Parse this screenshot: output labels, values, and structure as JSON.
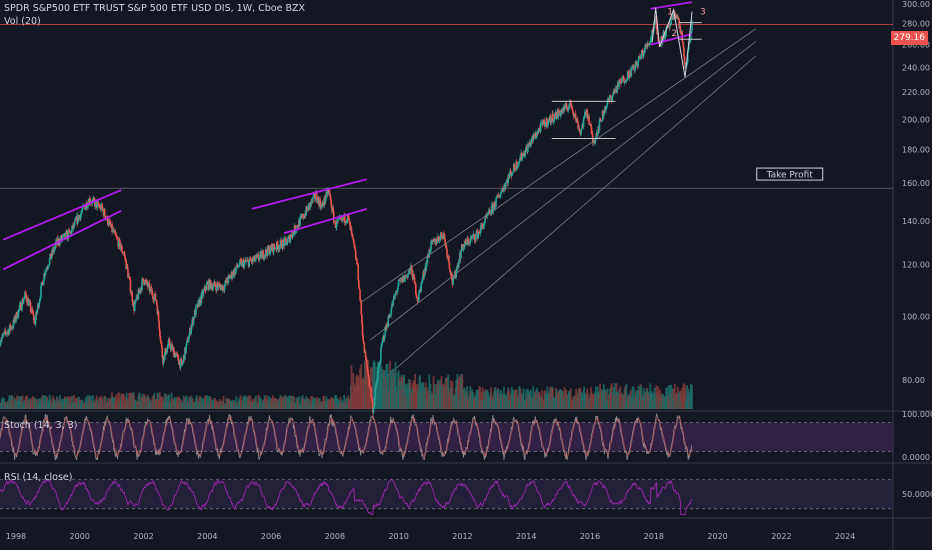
{
  "header": {
    "title": "SPDR S&P500 ETF TRUST S&P 500 ETF USD DIS, 1W, Cboe BZX",
    "vol_label": "Vol (20)",
    "stoch_label": "Stoch (14, 3, 3)",
    "rsi_label": "RSI (14, close)"
  },
  "price_tag": "279.16",
  "take_profit_label": "Take Profit",
  "wave_labels": [
    "1",
    "2",
    "3"
  ],
  "stoch_axis": [
    "100.0000",
    "0.0000"
  ],
  "rsi_axis": [
    "50.0000"
  ],
  "colors": {
    "background": "#131722",
    "up": "#26a69a",
    "down": "#ef5350",
    "trend_purple": "#b31cf0",
    "oscillator": "#9b27b0",
    "price_line": "#ef5350"
  },
  "chart_data": {
    "type": "candlestick",
    "symbol": "SPDR S&P500 ETF TRUST S&P 500 ETF USD DIS",
    "interval": "1W",
    "exchange": "Cboe BZX",
    "x_ticks": [
      "1998",
      "2000",
      "2002",
      "2004",
      "2006",
      "2008",
      "2010",
      "2012",
      "2014",
      "2016",
      "2018",
      "2020",
      "2022",
      "2024"
    ],
    "y_ticks": [
      80,
      100,
      120,
      140,
      160,
      180,
      200,
      220,
      240,
      260,
      280,
      300
    ],
    "ylim": [
      70,
      300
    ],
    "last_price": 279.16,
    "horizontal_level": 157,
    "price_series": [
      {
        "t": 1997.5,
        "v": 92
      },
      {
        "t": 1997.9,
        "v": 97
      },
      {
        "t": 1998.3,
        "v": 108
      },
      {
        "t": 1998.6,
        "v": 98
      },
      {
        "t": 1998.9,
        "v": 117
      },
      {
        "t": 1999.3,
        "v": 130
      },
      {
        "t": 1999.7,
        "v": 134
      },
      {
        "t": 2000.0,
        "v": 143
      },
      {
        "t": 2000.3,
        "v": 151
      },
      {
        "t": 2000.7,
        "v": 146
      },
      {
        "t": 2001.0,
        "v": 136
      },
      {
        "t": 2001.4,
        "v": 124
      },
      {
        "t": 2001.7,
        "v": 103
      },
      {
        "t": 2002.0,
        "v": 114
      },
      {
        "t": 2002.4,
        "v": 106
      },
      {
        "t": 2002.6,
        "v": 86
      },
      {
        "t": 2002.8,
        "v": 91
      },
      {
        "t": 2003.2,
        "v": 84
      },
      {
        "t": 2003.6,
        "v": 101
      },
      {
        "t": 2004.0,
        "v": 112
      },
      {
        "t": 2004.5,
        "v": 111
      },
      {
        "t": 2005.0,
        "v": 120
      },
      {
        "t": 2005.5,
        "v": 122
      },
      {
        "t": 2006.0,
        "v": 127
      },
      {
        "t": 2006.5,
        "v": 130
      },
      {
        "t": 2007.0,
        "v": 142
      },
      {
        "t": 2007.4,
        "v": 153
      },
      {
        "t": 2007.6,
        "v": 147
      },
      {
        "t": 2007.8,
        "v": 156
      },
      {
        "t": 2008.0,
        "v": 138
      },
      {
        "t": 2008.4,
        "v": 142
      },
      {
        "t": 2008.7,
        "v": 120
      },
      {
        "t": 2008.9,
        "v": 90
      },
      {
        "t": 2009.2,
        "v": 72
      },
      {
        "t": 2009.5,
        "v": 92
      },
      {
        "t": 2010.0,
        "v": 112
      },
      {
        "t": 2010.4,
        "v": 118
      },
      {
        "t": 2010.6,
        "v": 106
      },
      {
        "t": 2011.0,
        "v": 128
      },
      {
        "t": 2011.4,
        "v": 134
      },
      {
        "t": 2011.7,
        "v": 112
      },
      {
        "t": 2012.0,
        "v": 128
      },
      {
        "t": 2012.5,
        "v": 134
      },
      {
        "t": 2013.0,
        "v": 148
      },
      {
        "t": 2013.5,
        "v": 165
      },
      {
        "t": 2014.0,
        "v": 180
      },
      {
        "t": 2014.5,
        "v": 196
      },
      {
        "t": 2015.0,
        "v": 204
      },
      {
        "t": 2015.4,
        "v": 211
      },
      {
        "t": 2015.7,
        "v": 191
      },
      {
        "t": 2015.9,
        "v": 207
      },
      {
        "t": 2016.1,
        "v": 184
      },
      {
        "t": 2016.5,
        "v": 210
      },
      {
        "t": 2016.9,
        "v": 226
      },
      {
        "t": 2017.4,
        "v": 240
      },
      {
        "t": 2017.9,
        "v": 265
      },
      {
        "t": 2018.05,
        "v": 286
      },
      {
        "t": 2018.15,
        "v": 262
      },
      {
        "t": 2018.4,
        "v": 272
      },
      {
        "t": 2018.7,
        "v": 291
      },
      {
        "t": 2018.9,
        "v": 265
      },
      {
        "t": 2018.98,
        "v": 235
      },
      {
        "t": 2019.2,
        "v": 279.16
      }
    ],
    "annotations": [
      {
        "type": "trendline",
        "color": "purple",
        "points": [
          [
            1997.6,
            131
          ],
          [
            2001.3,
            156
          ]
        ]
      },
      {
        "type": "trendline",
        "color": "purple",
        "points": [
          [
            1997.6,
            118
          ],
          [
            2001.3,
            145
          ]
        ]
      },
      {
        "type": "trendline",
        "color": "purple",
        "points": [
          [
            2005.4,
            146
          ],
          [
            2009.0,
            162
          ]
        ]
      },
      {
        "type": "trendline",
        "color": "purple",
        "points": [
          [
            2006.4,
            134
          ],
          [
            2009.0,
            146
          ]
        ]
      },
      {
        "type": "trendline",
        "color": "purple",
        "points": [
          [
            2017.9,
            295
          ],
          [
            2019.2,
            302
          ]
        ]
      },
      {
        "type": "trendline",
        "color": "purple",
        "points": [
          [
            2017.9,
            260
          ],
          [
            2019.2,
            270
          ]
        ]
      },
      {
        "type": "channel",
        "color": "gray",
        "points": [
          [
            2008.8,
            105
          ],
          [
            2021.2,
            275
          ]
        ]
      },
      {
        "type": "channel",
        "color": "gray",
        "points": [
          [
            2009.1,
            92
          ],
          [
            2021.2,
            263
          ]
        ]
      },
      {
        "type": "channel",
        "color": "gray",
        "points": [
          [
            2009.5,
            80
          ],
          [
            2021.2,
            250
          ]
        ]
      },
      {
        "type": "range",
        "color": "white",
        "levels": [
          213,
          187
        ],
        "t": [
          2014.8,
          2016.8
        ]
      },
      {
        "type": "range",
        "color": "white",
        "levels": [
          281,
          265
        ],
        "t": [
          2018.8,
          2019.5
        ]
      }
    ],
    "stochastic": {
      "name": "Stoch (14, 3, 3)",
      "ylim": [
        0,
        100
      ],
      "levels": [
        80,
        20
      ]
    },
    "rsi": {
      "name": "RSI (14, close)",
      "ylim": [
        0,
        100
      ],
      "levels": [
        70,
        50,
        30
      ]
    }
  }
}
